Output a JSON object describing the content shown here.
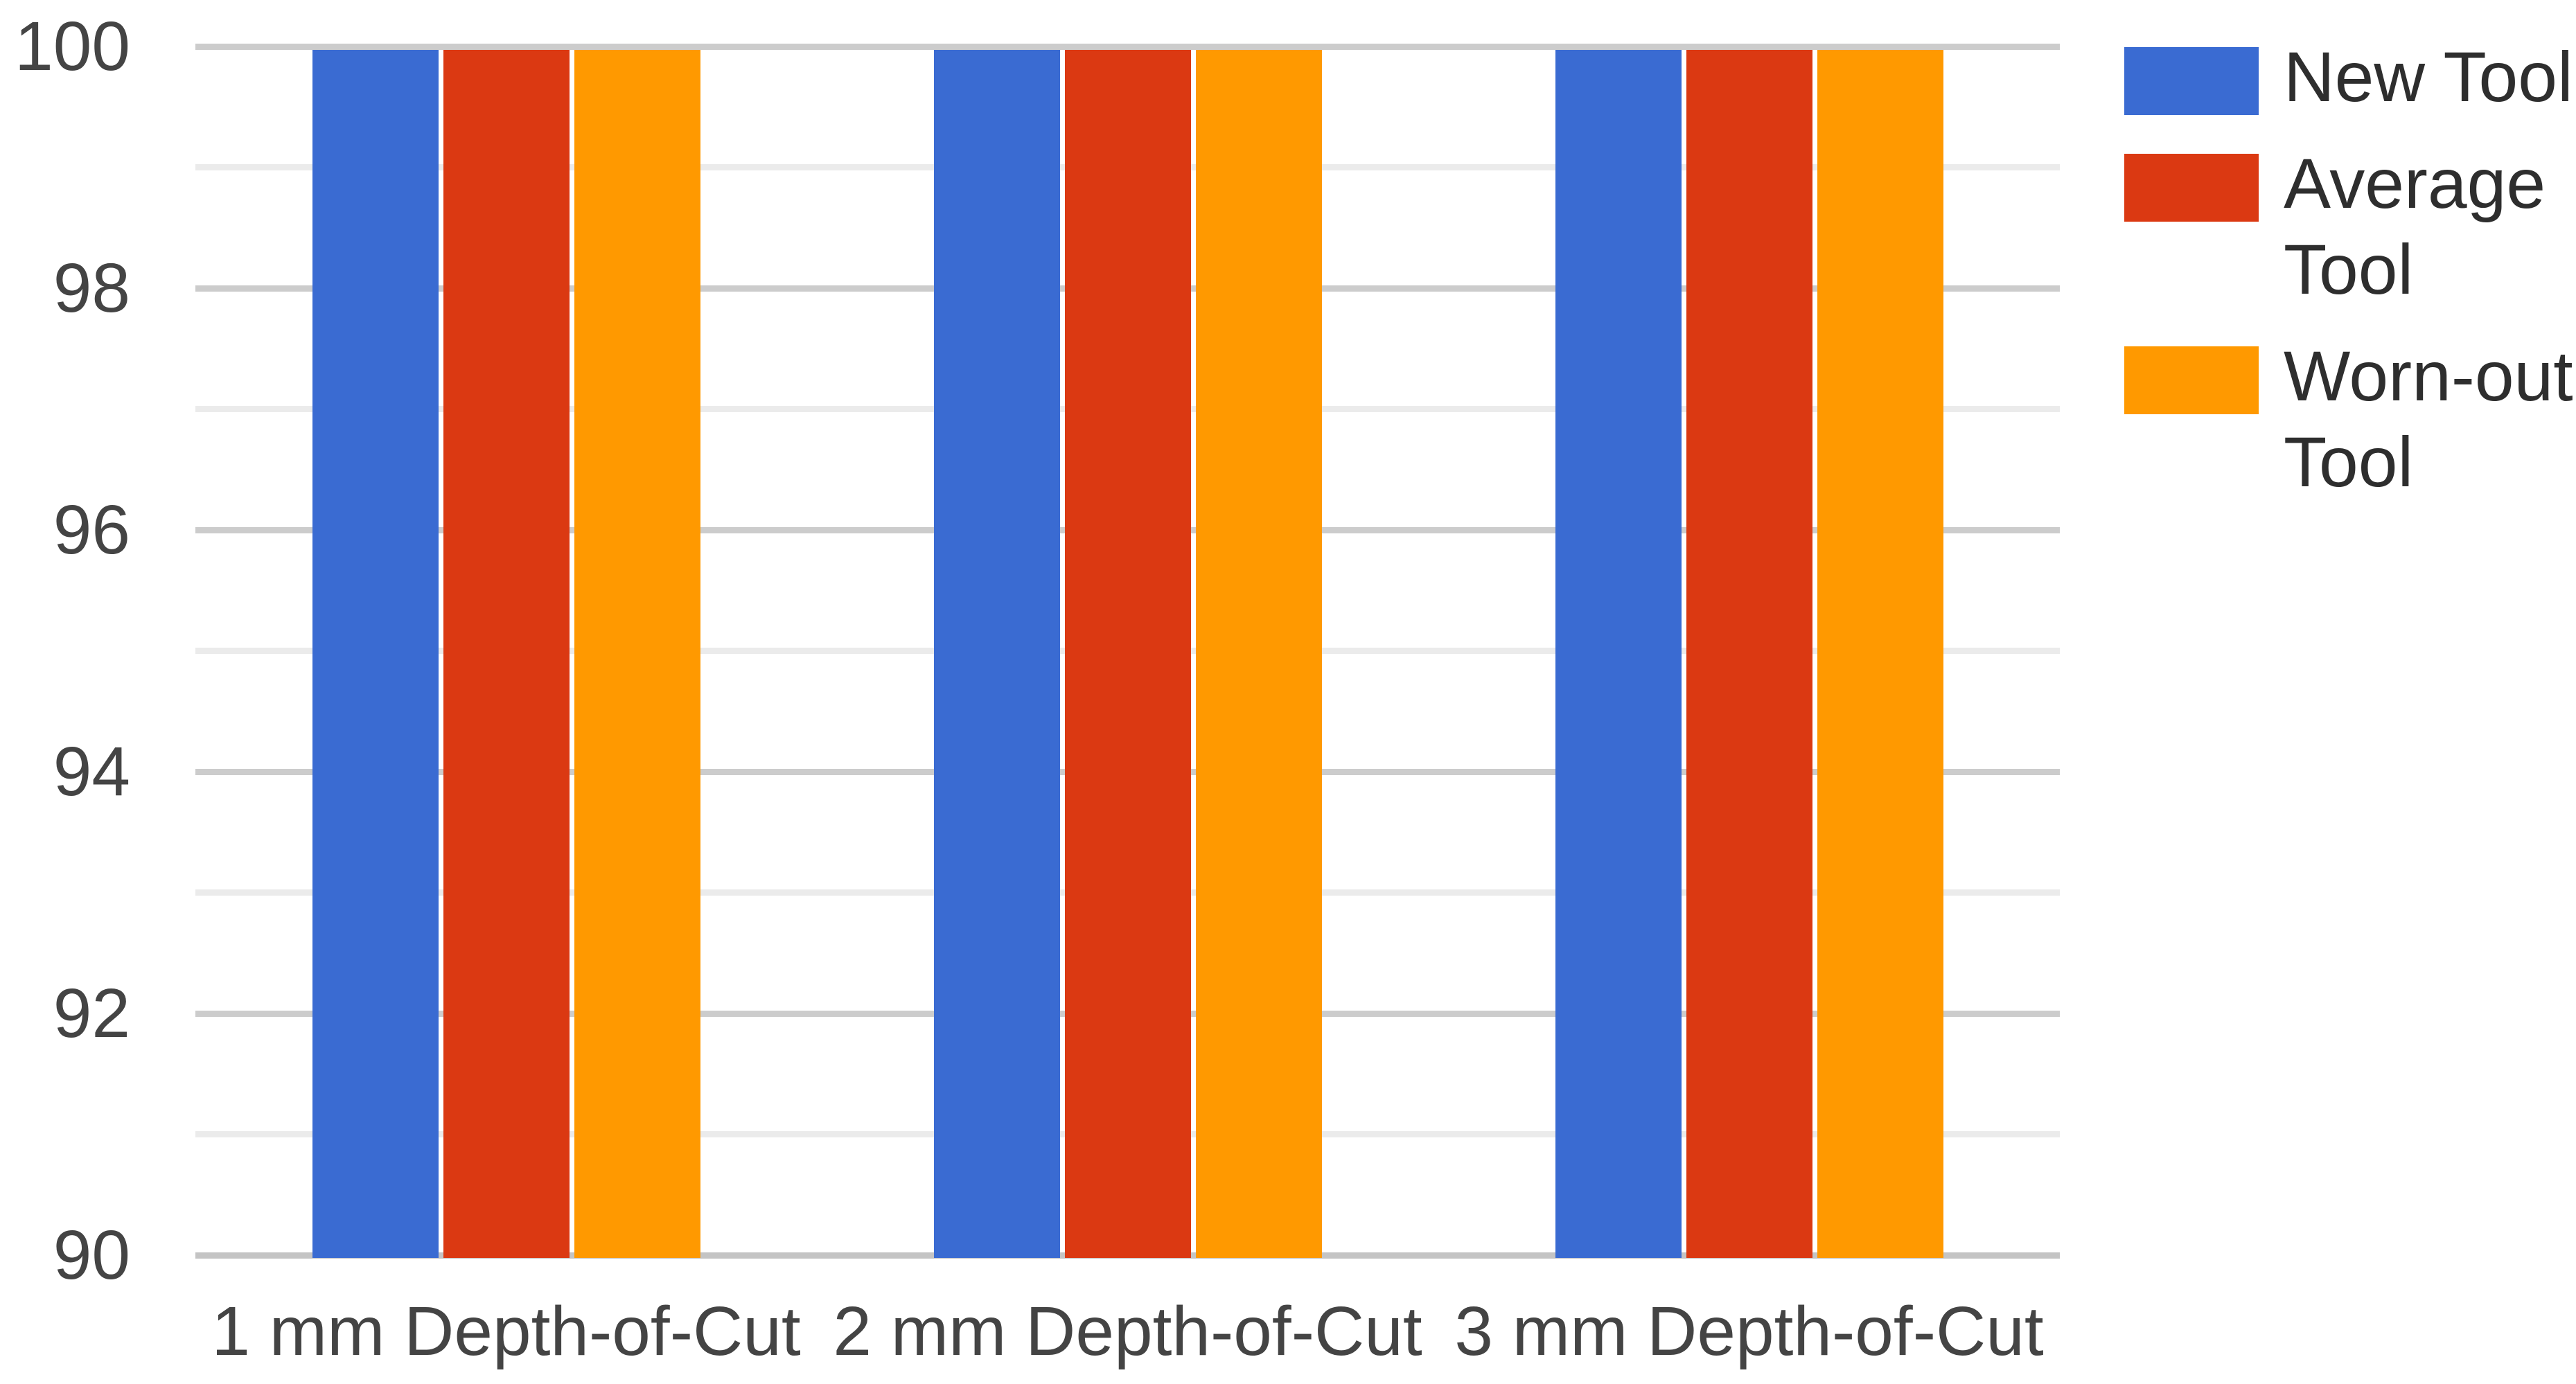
{
  "chart_data": {
    "type": "bar",
    "categories": [
      "1 mm Depth-of-Cut",
      "2 mm Depth-of-Cut",
      "3 mm Depth-of-Cut"
    ],
    "series": [
      {
        "name": "New Tool",
        "color": "#3A6BD2",
        "values": [
          100,
          100,
          100
        ],
        "legend_lines": [
          "New Tool"
        ]
      },
      {
        "name": "Average Tool",
        "color": "#DB3912",
        "values": [
          100,
          100,
          100
        ],
        "legend_lines": [
          "Average",
          "Tool"
        ]
      },
      {
        "name": "Worn-out Tool",
        "color": "#FF9900",
        "values": [
          100,
          100,
          100
        ],
        "legend_lines": [
          "Worn-out",
          "Tool"
        ]
      }
    ],
    "ylim": [
      90,
      100
    ],
    "y_major_ticks": [
      100,
      98,
      96,
      94,
      92,
      90
    ],
    "y_minor_step": 1,
    "grid": true,
    "legend_position": "right",
    "colors": {
      "axis_text": "#444444",
      "legend_text": "#2E2E2E",
      "grid_major": "#CCCCCC",
      "grid_minor": "#EBEBEB",
      "baseline": "#C4C4C4",
      "background": "#FFFFFF"
    }
  }
}
